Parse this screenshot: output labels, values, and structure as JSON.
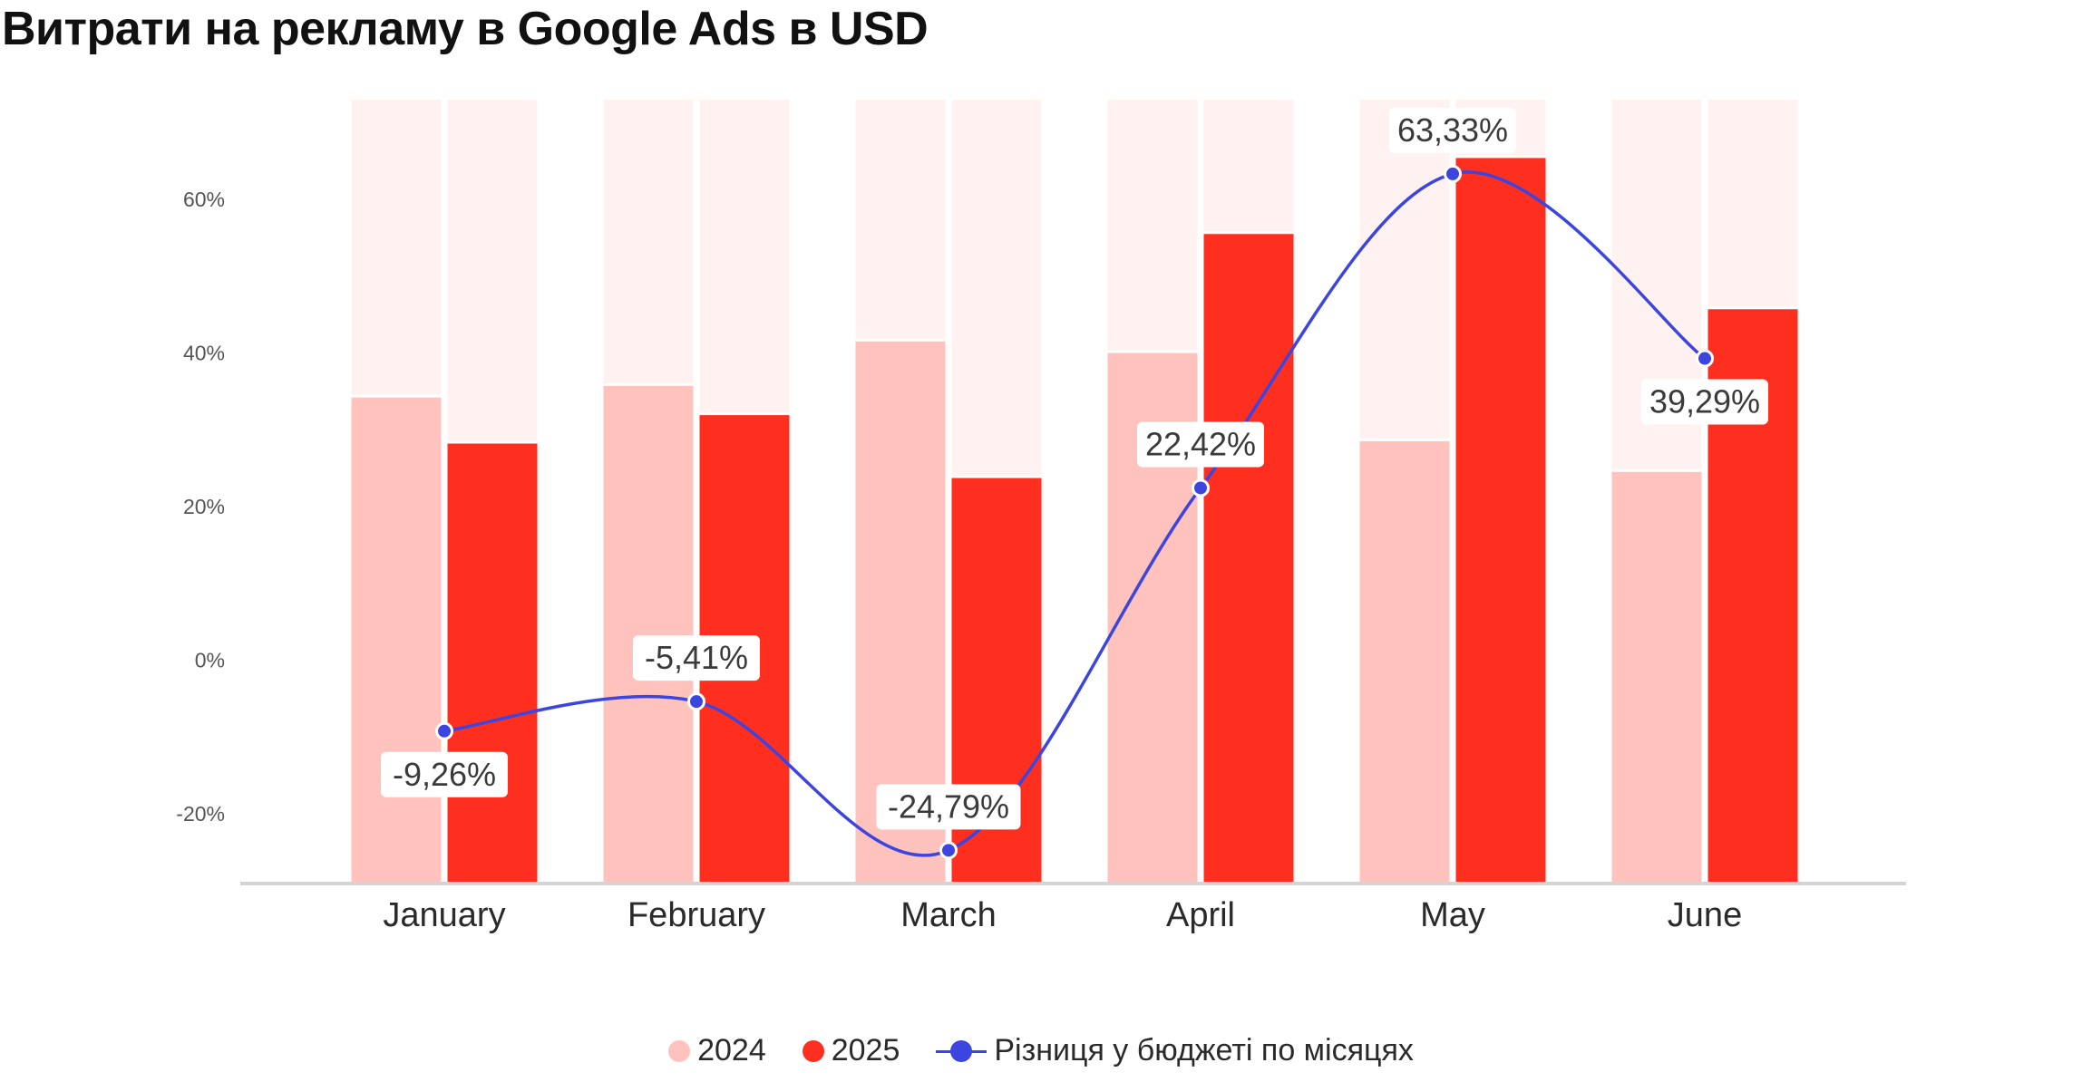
{
  "chart_data": {
    "type": "bar",
    "title": "Витрати на рекламу в Google Ads в USD",
    "categories": [
      "January",
      "February",
      "March",
      "April",
      "May",
      "June"
    ],
    "yaxis": {
      "ticks": [
        "60%",
        "40%",
        "20%",
        "0%",
        "-20%"
      ],
      "tick_values": [
        60,
        40,
        20,
        0,
        -20
      ],
      "range": [
        -29,
        73
      ]
    },
    "grid": false,
    "legend_position": "bottom",
    "series": [
      {
        "name": "2024",
        "kind": "bar",
        "color": "#FFC2BC",
        "values": [
          34.5,
          36,
          41.8,
          40.3,
          28.8,
          24.8
        ]
      },
      {
        "name": "2025",
        "kind": "bar",
        "color": "#FF2F1F",
        "values": [
          28.5,
          32.2,
          24,
          55.8,
          65.7,
          46
        ]
      },
      {
        "name": "Різниця у бюджеті по місяцях",
        "kind": "line",
        "color": "#3D45E0",
        "values": [
          -9.26,
          -5.41,
          -24.79,
          22.42,
          63.33,
          39.29
        ],
        "labels": [
          "-9,26%",
          "-5,41%",
          "-24,79%",
          "22,42%",
          "63,33%",
          "39,29%"
        ]
      }
    ],
    "background_bar_color": "#FFF2F0"
  }
}
